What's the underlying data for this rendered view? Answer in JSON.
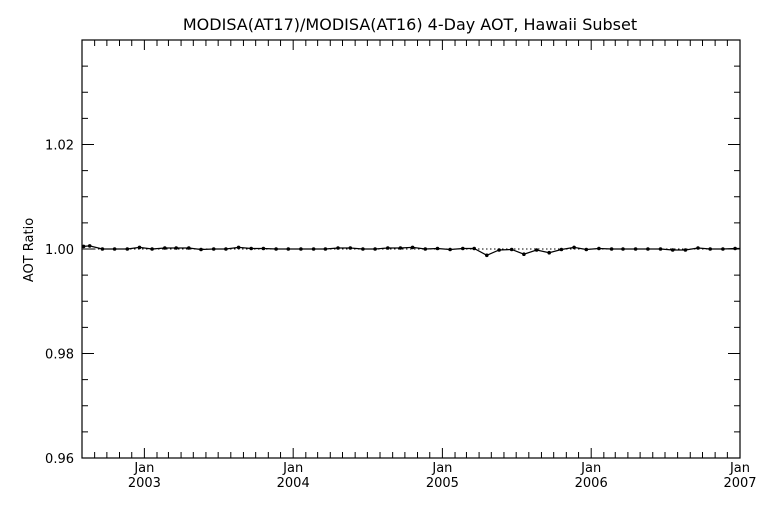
{
  "chart_data": {
    "type": "line",
    "title": "MODISA(AT17)/MODISA(AT16) 4-Day AOT, Hawaii Subset",
    "xlabel": "",
    "ylabel": "AOT Ratio",
    "x_start": "2002-08-01",
    "x_end": "2007-01-01",
    "ylim": [
      0.96,
      1.04
    ],
    "y_ticks": [
      "0.96",
      "0.98",
      "1.00",
      "1.02"
    ],
    "x_ticks": [
      {
        "month": "Jan",
        "year": "2003",
        "date": "2003-01-01"
      },
      {
        "month": "Jan",
        "year": "2004",
        "date": "2004-01-01"
      },
      {
        "month": "Jan",
        "year": "2005",
        "date": "2005-01-01"
      },
      {
        "month": "Jan",
        "year": "2006",
        "date": "2006-01-01"
      },
      {
        "month": "Jan",
        "year": "2007",
        "date": "2007-01-01"
      }
    ],
    "reference_line": 1.0,
    "grid": false,
    "series": [
      {
        "points": [
          [
            "2002-08-05",
            1.0005
          ],
          [
            "2002-08-20",
            1.0006
          ],
          [
            "2002-09-20",
            1.0
          ],
          [
            "2002-10-20",
            1.0
          ],
          [
            "2002-11-20",
            1.0
          ],
          [
            "2002-12-20",
            1.0003
          ],
          [
            "2003-01-20",
            1.0
          ],
          [
            "2003-02-20",
            1.0002
          ],
          [
            "2003-03-20",
            1.0002
          ],
          [
            "2003-04-20",
            1.0002
          ],
          [
            "2003-05-20",
            0.9999
          ],
          [
            "2003-06-20",
            1.0
          ],
          [
            "2003-07-20",
            1.0
          ],
          [
            "2003-08-20",
            1.0003
          ],
          [
            "2003-09-20",
            1.0001
          ],
          [
            "2003-10-20",
            1.0001
          ],
          [
            "2003-11-20",
            1.0
          ],
          [
            "2003-12-20",
            1.0
          ],
          [
            "2004-01-20",
            1.0
          ],
          [
            "2004-02-20",
            1.0
          ],
          [
            "2004-03-20",
            1.0
          ],
          [
            "2004-04-20",
            1.0002
          ],
          [
            "2004-05-20",
            1.0002
          ],
          [
            "2004-06-20",
            1.0
          ],
          [
            "2004-07-20",
            1.0
          ],
          [
            "2004-08-20",
            1.0002
          ],
          [
            "2004-09-20",
            1.0002
          ],
          [
            "2004-10-20",
            1.0003
          ],
          [
            "2004-11-20",
            1.0
          ],
          [
            "2004-12-20",
            1.0001
          ],
          [
            "2005-01-20",
            0.9999
          ],
          [
            "2005-02-20",
            1.0001
          ],
          [
            "2005-03-20",
            1.0001
          ],
          [
            "2005-04-20",
            0.9988
          ],
          [
            "2005-05-20",
            0.9998
          ],
          [
            "2005-06-20",
            0.9999
          ],
          [
            "2005-07-20",
            0.999
          ],
          [
            "2005-08-20",
            0.9998
          ],
          [
            "2005-09-20",
            0.9993
          ],
          [
            "2005-10-20",
            0.9999
          ],
          [
            "2005-11-20",
            1.0003
          ],
          [
            "2005-12-20",
            0.9999
          ],
          [
            "2006-01-20",
            1.0001
          ],
          [
            "2006-02-20",
            1.0
          ],
          [
            "2006-03-20",
            1.0
          ],
          [
            "2006-04-20",
            1.0
          ],
          [
            "2006-05-20",
            1.0
          ],
          [
            "2006-06-20",
            1.0
          ],
          [
            "2006-07-20",
            0.9998
          ],
          [
            "2006-08-20",
            0.9998
          ],
          [
            "2006-09-20",
            1.0002
          ],
          [
            "2006-10-20",
            1.0
          ],
          [
            "2006-11-20",
            1.0
          ],
          [
            "2006-12-20",
            1.0001
          ]
        ]
      }
    ]
  }
}
